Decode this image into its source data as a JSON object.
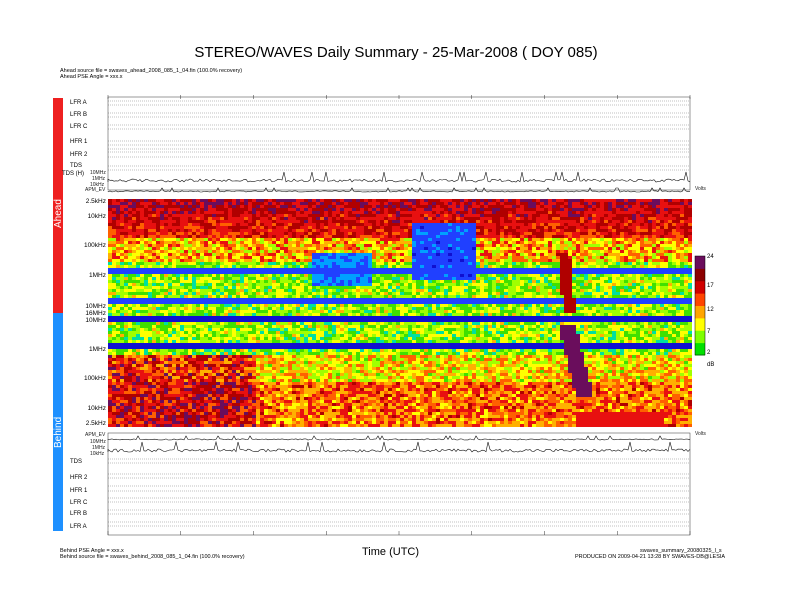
{
  "page": {
    "title": "STEREO/WAVES Daily Summary - 25-Mar-2008 ( DOY 085)",
    "ahead_source": "Ahead source file = swaves_ahead_2008_085_1_04.fin (100.0% recovery)",
    "ahead_pse": "Ahead PSE Angle = xxx.x",
    "behind_pse": "Behind PSE Angle = xxx.x",
    "behind_source": "Behind source file = swaves_behind_2008_085_1_04.fin (100.0% recovery)",
    "xlabel": "Time (UTC)",
    "footer_file": "swaves_summary_20080325_l_s",
    "footer_produced": "PRODUCED ON 2009-04-21 13:28 BY SWAVES-DB@LESIA"
  },
  "bands": {
    "ahead": {
      "label": "Ahead",
      "color": "#ee2020"
    },
    "behind": {
      "label": "Behind",
      "color": "#1e90ff"
    }
  },
  "ahead_rows": [
    "LFR A",
    "LFR B",
    "LFR C",
    "HFR 1",
    "HFR 2",
    "TDS",
    "TDS (H)"
  ],
  "behind_rows": [
    "TDS",
    "HFR 2",
    "HFR 1",
    "LFR C",
    "LFR B",
    "LFR A"
  ],
  "freq_labels_ahead": [
    "2.5kHz",
    "10kHz",
    "100kHz",
    "1MHz",
    "10MHz",
    "16MHz"
  ],
  "freq_labels_behind": [
    "10MHz",
    "1MHz",
    "100kHz",
    "10kHz",
    "2.5kHz"
  ],
  "small_labels": {
    "ahead_tds": [
      "10MHz",
      "1MHz",
      "10kHz"
    ],
    "ahead_apm": "APM_EV",
    "behind_apm": "APM_EV",
    "behind_tds": [
      "10MHz",
      "1MHz",
      "10kHz"
    ],
    "right_units": "Volts",
    "right_db": "dB"
  },
  "colorbar": {
    "ticks": [
      "24",
      "17",
      "12",
      "7",
      "2"
    ],
    "unit": "dB",
    "colors": [
      "#00e000",
      "#7fff00",
      "#ffff00",
      "#ffa500",
      "#ff4500",
      "#d00000",
      "#8b0000",
      "#6a0d5c"
    ]
  },
  "chart_data": {
    "type": "heatmap",
    "title": "STEREO/WAVES Daily Summary - 25-Mar-2008 ( DOY 085)",
    "xlabel": "Time (UTC)",
    "ylabel": "",
    "panels": [
      {
        "name": "Ahead",
        "y_ticks": [
          "2.5kHz",
          "10kHz",
          "100kHz",
          "1MHz",
          "10MHz",
          "16MHz"
        ]
      },
      {
        "name": "Behind",
        "y_ticks": [
          "10MHz",
          "1MHz",
          "100kHz",
          "10kHz",
          "2.5kHz"
        ]
      }
    ],
    "colorbar": {
      "min": 2,
      "max": 24,
      "ticks": [
        2,
        7,
        12,
        17,
        24
      ],
      "unit": "dB"
    },
    "scale": "log-frequency",
    "grid": false
  }
}
